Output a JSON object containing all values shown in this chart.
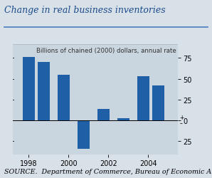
{
  "title": "Change in real business inventories",
  "subtitle": "Billions of chained (2000) dollars, annual rate",
  "source": "SOURCE.  Department of Commerce, Bureau of Economic Analysis.",
  "years": [
    1998.0,
    1998.75,
    1999.75,
    2000.75,
    2001.75,
    2002.75,
    2003.75,
    2004.5
  ],
  "values": [
    76,
    70,
    55,
    -35,
    13,
    2,
    53,
    42
  ],
  "bar_color": "#1F5FA6",
  "plot_bg_color": "#C9D5DF",
  "fig_bg_color": "#D8E0E8",
  "yticks": [
    -25,
    0,
    25,
    50,
    75
  ],
  "ylim": [
    -42,
    92
  ],
  "xlim": [
    1997.2,
    2005.5
  ],
  "xticks": [
    1998,
    2000,
    2002,
    2004
  ],
  "bar_width": 0.6,
  "title_fontsize": 9.0,
  "subtitle_fontsize": 6.2,
  "source_fontsize": 6.8,
  "tick_fontsize": 7.0
}
